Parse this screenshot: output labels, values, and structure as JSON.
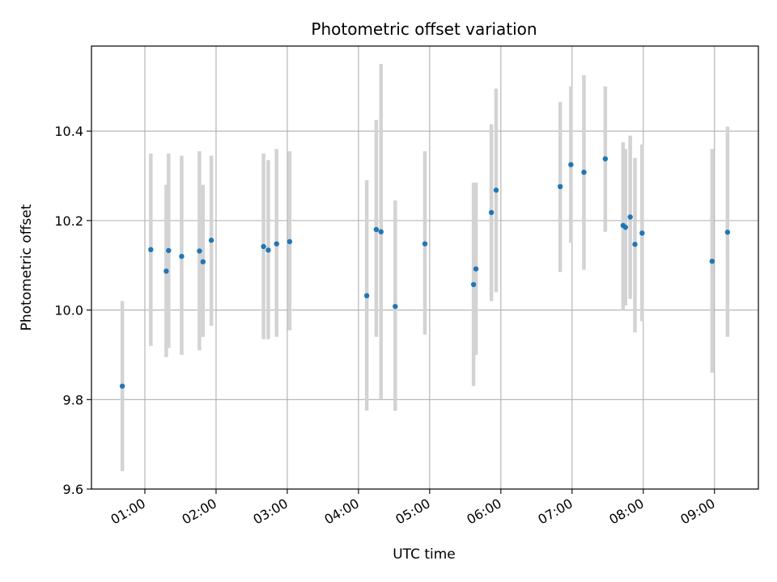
{
  "chart_data": {
    "type": "scatter",
    "title": "Photometric offset variation",
    "xlabel": "UTC time",
    "ylabel": "Photometric offset",
    "x_axis": {
      "type": "time",
      "range": [
        "00:15",
        "09:37"
      ],
      "ticks": [
        "01:00",
        "02:00",
        "03:00",
        "04:00",
        "05:00",
        "06:00",
        "07:00",
        "08:00",
        "09:00"
      ]
    },
    "y_axis": {
      "range": [
        9.6,
        10.59
      ],
      "ticks": [
        9.6,
        9.8,
        10.0,
        10.2,
        10.4
      ],
      "tick_labels": [
        "9.6",
        "9.8",
        "10.0",
        "10.2",
        "10.4"
      ]
    },
    "grid": true,
    "colors": {
      "point": "#1f77b4",
      "errorbar": "#d3d3d3",
      "grid": "#b0b0b0"
    },
    "points": [
      {
        "t": "00:41",
        "y": 9.83,
        "lo": 9.64,
        "hi": 10.02
      },
      {
        "t": "01:05",
        "y": 10.135,
        "lo": 9.92,
        "hi": 10.35
      },
      {
        "t": "01:18",
        "y": 10.087,
        "lo": 9.895,
        "hi": 10.28
      },
      {
        "t": "01:20",
        "y": 10.133,
        "lo": 9.915,
        "hi": 10.35
      },
      {
        "t": "01:31",
        "y": 10.12,
        "lo": 9.9,
        "hi": 10.345
      },
      {
        "t": "01:46",
        "y": 10.132,
        "lo": 9.91,
        "hi": 10.355
      },
      {
        "t": "01:49",
        "y": 10.108,
        "lo": 9.94,
        "hi": 10.28
      },
      {
        "t": "01:56",
        "y": 10.156,
        "lo": 9.965,
        "hi": 10.345
      },
      {
        "t": "02:40",
        "y": 10.142,
        "lo": 9.935,
        "hi": 10.35
      },
      {
        "t": "02:44",
        "y": 10.134,
        "lo": 9.935,
        "hi": 10.335
      },
      {
        "t": "02:51",
        "y": 10.148,
        "lo": 9.94,
        "hi": 10.36
      },
      {
        "t": "03:02",
        "y": 10.153,
        "lo": 9.955,
        "hi": 10.355
      },
      {
        "t": "04:07",
        "y": 10.032,
        "lo": 9.775,
        "hi": 10.29
      },
      {
        "t": "04:15",
        "y": 10.18,
        "lo": 9.94,
        "hi": 10.425
      },
      {
        "t": "04:19",
        "y": 10.175,
        "lo": 9.8,
        "hi": 10.55
      },
      {
        "t": "04:31",
        "y": 10.008,
        "lo": 9.775,
        "hi": 10.245
      },
      {
        "t": "04:56",
        "y": 10.148,
        "lo": 9.945,
        "hi": 10.355
      },
      {
        "t": "05:37",
        "y": 10.057,
        "lo": 9.83,
        "hi": 10.285
      },
      {
        "t": "05:39",
        "y": 10.092,
        "lo": 9.9,
        "hi": 10.285
      },
      {
        "t": "05:52",
        "y": 10.218,
        "lo": 10.02,
        "hi": 10.415
      },
      {
        "t": "05:56",
        "y": 10.268,
        "lo": 10.04,
        "hi": 10.495
      },
      {
        "t": "06:50",
        "y": 10.276,
        "lo": 10.085,
        "hi": 10.465
      },
      {
        "t": "06:59",
        "y": 10.325,
        "lo": 10.15,
        "hi": 10.5
      },
      {
        "t": "07:10",
        "y": 10.308,
        "lo": 10.09,
        "hi": 10.525
      },
      {
        "t": "07:28",
        "y": 10.338,
        "lo": 10.175,
        "hi": 10.5
      },
      {
        "t": "07:43",
        "y": 10.189,
        "lo": 10.0,
        "hi": 10.375
      },
      {
        "t": "07:45",
        "y": 10.185,
        "lo": 10.01,
        "hi": 10.36
      },
      {
        "t": "07:49",
        "y": 10.208,
        "lo": 10.025,
        "hi": 10.39
      },
      {
        "t": "07:53",
        "y": 10.147,
        "lo": 9.95,
        "hi": 10.34
      },
      {
        "t": "07:59",
        "y": 10.172,
        "lo": 9.975,
        "hi": 10.37
      },
      {
        "t": "08:58",
        "y": 10.109,
        "lo": 9.86,
        "hi": 10.36
      },
      {
        "t": "09:11",
        "y": 10.174,
        "lo": 9.94,
        "hi": 10.41
      }
    ]
  }
}
